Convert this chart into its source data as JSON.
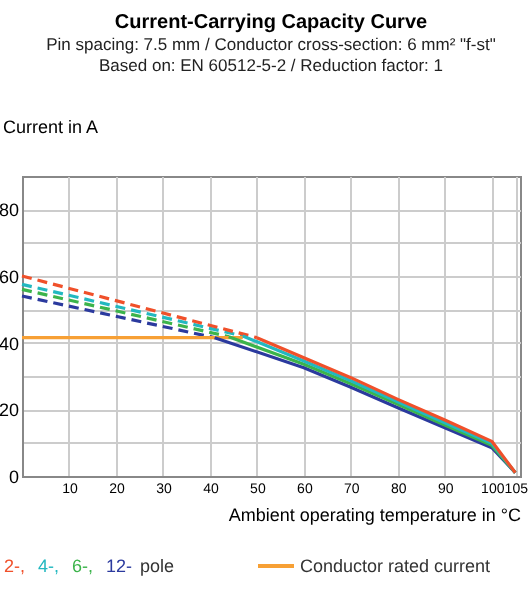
{
  "chart_data": {
    "type": "line",
    "title": "Current-Carrying Capacity Curve",
    "subtitle": "Pin spacing: 7.5 mm / Conductor cross-section: 6 mm² \"f-st\"\nBased on: EN 60512-5-2 / Reduction factor: 1",
    "ylabel": "Current in A",
    "xlabel": "Ambient operating temperature in °C",
    "legend_title": "pole",
    "legend": "bottom",
    "grid": true,
    "marker": "none",
    "xlim": [
      0,
      106
    ],
    "ylim": [
      0,
      90
    ],
    "xticks": [
      {
        "value": 0,
        "label": null
      },
      10,
      20,
      30,
      40,
      50,
      60,
      70,
      80,
      90,
      100,
      105
    ],
    "yticks": [
      0,
      {
        "value": 10,
        "label": null
      },
      20,
      {
        "value": 30,
        "label": null
      },
      40,
      {
        "value": 50,
        "label": null
      },
      60,
      {
        "value": 70,
        "label": null
      },
      80
    ],
    "series": [
      {
        "color": "#2b3a9e",
        "line_style": "dashed",
        "x": [
          0,
          41
        ],
        "values": [
          54,
          41.5
        ]
      },
      {
        "color": "#3cb44b",
        "line_style": "dashed",
        "x": [
          0,
          44
        ],
        "values": [
          56,
          41.8
        ]
      },
      {
        "color": "#22b8c0",
        "line_style": "dashed",
        "x": [
          0,
          47
        ],
        "values": [
          57.5,
          42
        ]
      },
      {
        "color": "#f0502a",
        "line_style": "dashed",
        "x": [
          0,
          50
        ],
        "values": [
          60,
          41.5
        ]
      },
      {
        "name": "Conductor rated current",
        "color": "#f7a035",
        "line_style": "solid",
        "x": [
          0,
          47
        ],
        "values": [
          41.5,
          41.5
        ]
      },
      {
        "name": "12-",
        "color": "#2b3a9e",
        "line_style": "solid",
        "x": [
          41,
          60,
          70,
          80,
          90,
          100,
          105
        ],
        "values": [
          41.5,
          32.5,
          26.6,
          20.5,
          14.5,
          8.5,
          1
        ]
      },
      {
        "name": "6-,",
        "color": "#3cb44b",
        "line_style": "solid",
        "x": [
          44,
          60,
          70,
          80,
          90,
          100,
          105
        ],
        "values": [
          41.8,
          33.5,
          27.7,
          21.5,
          15.3,
          9.2,
          1
        ]
      },
      {
        "name": "4-,",
        "color": "#22b8c0",
        "line_style": "solid",
        "x": [
          47,
          60,
          70,
          80,
          90,
          100,
          105
        ],
        "values": [
          42,
          34.5,
          28.6,
          22.3,
          16,
          9.8,
          1
        ]
      },
      {
        "name": "2-,",
        "color": "#f0502a",
        "line_style": "solid",
        "x": [
          50,
          60,
          70,
          80,
          90,
          100,
          105
        ],
        "values": [
          41.5,
          35.5,
          29.5,
          23,
          16.8,
          10.4,
          1
        ]
      }
    ]
  }
}
